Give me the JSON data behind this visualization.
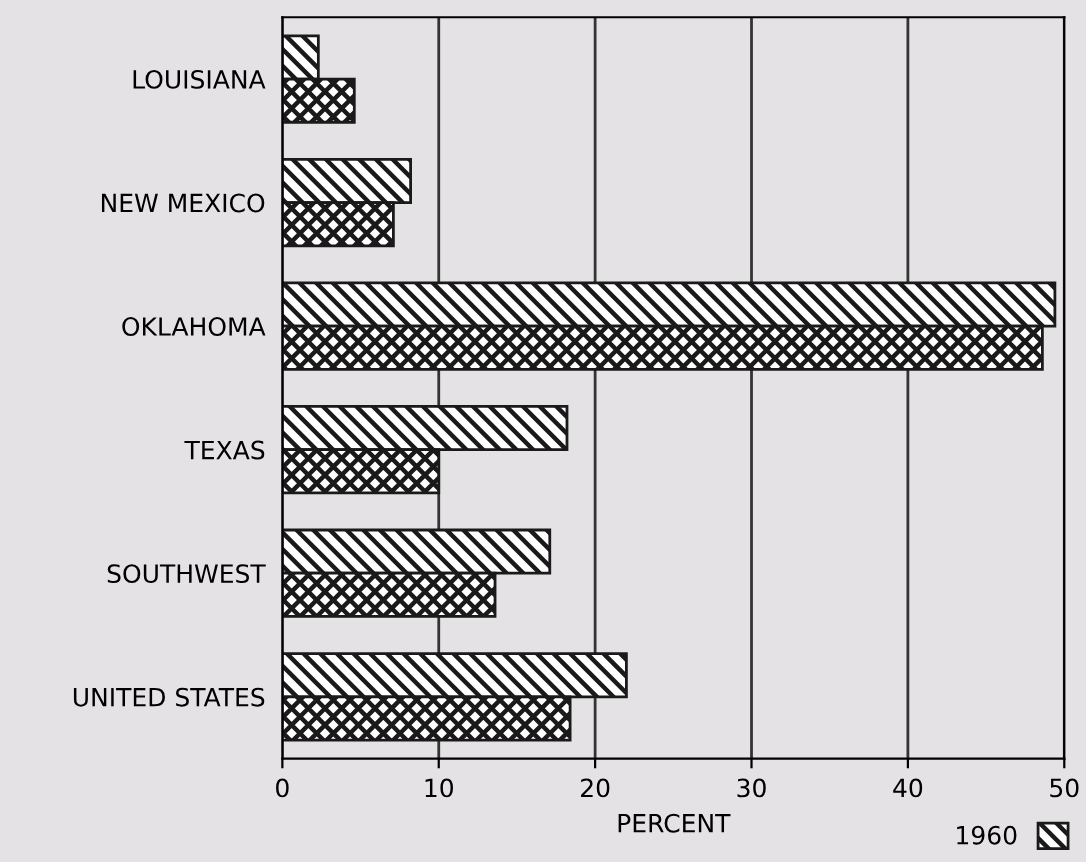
{
  "chart_data": {
    "type": "bar",
    "orientation": "horizontal",
    "xlabel": "PERCENT",
    "categories": [
      "LOUISIANA",
      "NEW MEXICO",
      "OKLAHOMA",
      "TEXAS",
      "SOUTHWEST",
      "UNITED STATES"
    ],
    "series": [
      {
        "name": "1960",
        "color": "#1a1a1a",
        "values": [
          2.3,
          8.2,
          49.4,
          18.2,
          17.1,
          22.0
        ]
      },
      {
        "color": "#1a1a1a",
        "values": [
          4.6,
          7.1,
          48.6,
          10.0,
          13.6,
          18.4
        ]
      }
    ],
    "xlim": [
      0,
      50
    ],
    "xticks": [
      0,
      10,
      20,
      30,
      40,
      50
    ],
    "grid": "x",
    "legend": "bottom right"
  }
}
